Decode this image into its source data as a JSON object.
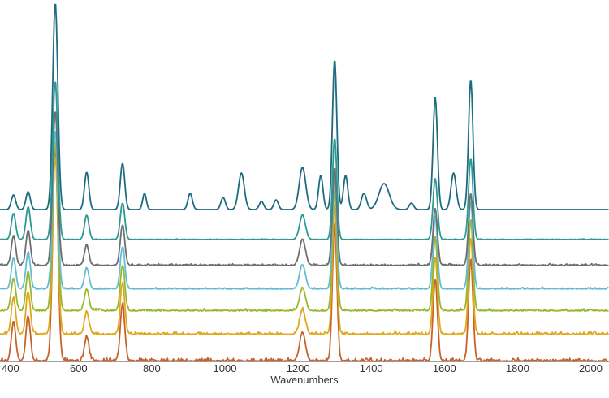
{
  "chart_data": {
    "type": "line",
    "title": "",
    "xlabel": "Wavenumbers",
    "ylabel": "",
    "xlim": [
      385,
      2050
    ],
    "xticks": [
      400,
      600,
      800,
      1000,
      1200,
      1400,
      1600,
      1800,
      2000
    ],
    "grid": false,
    "legend": "none",
    "stacked_offsets": true,
    "series": [
      {
        "color": "#c8622a",
        "baseline": 0,
        "noise": 6,
        "peaks": [
          {
            "x": 422,
            "h": 48,
            "w": 6
          },
          {
            "x": 462,
            "h": 55,
            "w": 6
          },
          {
            "x": 536,
            "h": 262,
            "w": 7
          },
          {
            "x": 622,
            "h": 30,
            "w": 6
          },
          {
            "x": 720,
            "h": 70,
            "w": 6
          },
          {
            "x": 1212,
            "h": 35,
            "w": 8
          },
          {
            "x": 1300,
            "h": 170,
            "w": 6
          },
          {
            "x": 1575,
            "h": 100,
            "w": 6
          },
          {
            "x": 1672,
            "h": 126,
            "w": 6
          }
        ]
      },
      {
        "color": "#e2a81c",
        "baseline": 33,
        "noise": 5,
        "peaks": [
          {
            "x": 422,
            "h": 44,
            "w": 6
          },
          {
            "x": 462,
            "h": 52,
            "w": 6
          },
          {
            "x": 536,
            "h": 220,
            "w": 7
          },
          {
            "x": 622,
            "h": 28,
            "w": 6
          },
          {
            "x": 720,
            "h": 62,
            "w": 6
          },
          {
            "x": 1212,
            "h": 30,
            "w": 8
          },
          {
            "x": 1300,
            "h": 160,
            "w": 6
          },
          {
            "x": 1575,
            "h": 95,
            "w": 6
          },
          {
            "x": 1672,
            "h": 118,
            "w": 6
          }
        ]
      },
      {
        "color": "#96b82e",
        "baseline": 62,
        "noise": 4,
        "peaks": [
          {
            "x": 422,
            "h": 40,
            "w": 6
          },
          {
            "x": 462,
            "h": 48,
            "w": 6
          },
          {
            "x": 536,
            "h": 210,
            "w": 7
          },
          {
            "x": 622,
            "h": 27,
            "w": 6
          },
          {
            "x": 720,
            "h": 56,
            "w": 6
          },
          {
            "x": 1212,
            "h": 28,
            "w": 8
          },
          {
            "x": 1300,
            "h": 150,
            "w": 6
          },
          {
            "x": 1575,
            "h": 90,
            "w": 6
          },
          {
            "x": 1672,
            "h": 112,
            "w": 6
          }
        ]
      },
      {
        "color": "#64bcd4",
        "baseline": 89,
        "noise": 3,
        "peaks": [
          {
            "x": 422,
            "h": 38,
            "w": 6
          },
          {
            "x": 462,
            "h": 45,
            "w": 6
          },
          {
            "x": 536,
            "h": 195,
            "w": 7
          },
          {
            "x": 622,
            "h": 26,
            "w": 6
          },
          {
            "x": 720,
            "h": 52,
            "w": 6
          },
          {
            "x": 1212,
            "h": 30,
            "w": 8
          },
          {
            "x": 1300,
            "h": 140,
            "w": 6
          },
          {
            "x": 1575,
            "h": 88,
            "w": 6
          },
          {
            "x": 1672,
            "h": 108,
            "w": 6
          }
        ]
      },
      {
        "color": "#6e6e6e",
        "baseline": 118,
        "noise": 3,
        "peaks": [
          {
            "x": 422,
            "h": 36,
            "w": 6
          },
          {
            "x": 462,
            "h": 43,
            "w": 6
          },
          {
            "x": 536,
            "h": 190,
            "w": 7
          },
          {
            "x": 622,
            "h": 25,
            "w": 6
          },
          {
            "x": 720,
            "h": 50,
            "w": 6
          },
          {
            "x": 1212,
            "h": 32,
            "w": 8
          },
          {
            "x": 1300,
            "h": 120,
            "w": 6
          },
          {
            "x": 1575,
            "h": 70,
            "w": 6
          },
          {
            "x": 1672,
            "h": 88,
            "w": 6
          }
        ]
      },
      {
        "color": "#2a9a92",
        "baseline": 150,
        "noise": 1,
        "peaks": [
          {
            "x": 422,
            "h": 32,
            "w": 6
          },
          {
            "x": 462,
            "h": 40,
            "w": 6
          },
          {
            "x": 536,
            "h": 195,
            "w": 7
          },
          {
            "x": 622,
            "h": 30,
            "w": 6
          },
          {
            "x": 720,
            "h": 45,
            "w": 6
          },
          {
            "x": 1212,
            "h": 30,
            "w": 8
          },
          {
            "x": 1300,
            "h": 125,
            "w": 6
          },
          {
            "x": 1575,
            "h": 75,
            "w": 6
          },
          {
            "x": 1672,
            "h": 100,
            "w": 6
          }
        ]
      },
      {
        "color": "#1e6b80",
        "baseline": 187,
        "noise": 0,
        "peaks": [
          {
            "x": 422,
            "h": 18,
            "w": 6
          },
          {
            "x": 462,
            "h": 22,
            "w": 6
          },
          {
            "x": 536,
            "h": 255,
            "w": 7
          },
          {
            "x": 622,
            "h": 46,
            "w": 6
          },
          {
            "x": 720,
            "h": 57,
            "w": 6
          },
          {
            "x": 780,
            "h": 20,
            "w": 5
          },
          {
            "x": 905,
            "h": 20,
            "w": 6
          },
          {
            "x": 995,
            "h": 15,
            "w": 6
          },
          {
            "x": 1045,
            "h": 45,
            "w": 8
          },
          {
            "x": 1100,
            "h": 10,
            "w": 6
          },
          {
            "x": 1140,
            "h": 12,
            "w": 6
          },
          {
            "x": 1212,
            "h": 52,
            "w": 9
          },
          {
            "x": 1262,
            "h": 42,
            "w": 6
          },
          {
            "x": 1300,
            "h": 185,
            "w": 6
          },
          {
            "x": 1330,
            "h": 42,
            "w": 6
          },
          {
            "x": 1380,
            "h": 20,
            "w": 7
          },
          {
            "x": 1435,
            "h": 32,
            "w": 14
          },
          {
            "x": 1510,
            "h": 8,
            "w": 6
          },
          {
            "x": 1575,
            "h": 138,
            "w": 6
          },
          {
            "x": 1625,
            "h": 45,
            "w": 7
          },
          {
            "x": 1672,
            "h": 160,
            "w": 6
          }
        ]
      }
    ]
  }
}
